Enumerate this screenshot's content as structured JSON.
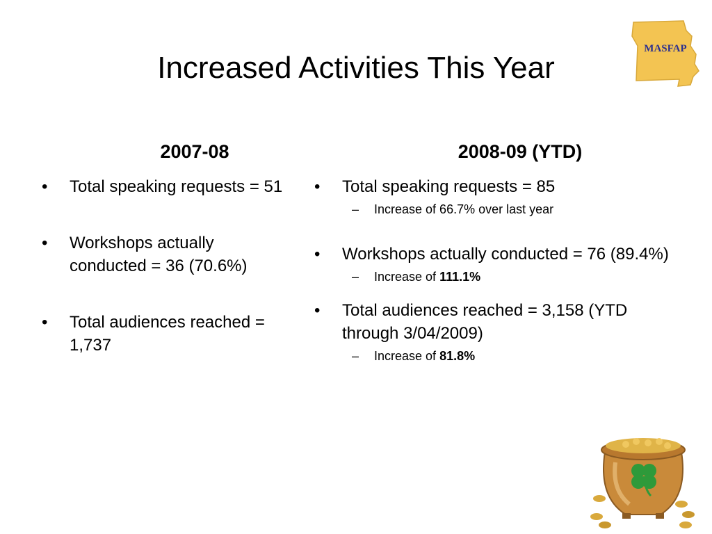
{
  "slide": {
    "title": "Increased Activities This Year",
    "logo_text": "MASFAP"
  },
  "left_column": {
    "heading": "2007-08",
    "items": [
      {
        "text": "Total speaking requests = 51"
      },
      {
        "text": "Workshops actually conducted = 36 (70.6%)"
      },
      {
        "text": "Total audiences reached = 1,737"
      }
    ]
  },
  "right_column": {
    "heading": "2008-09 (YTD)",
    "items": [
      {
        "text": "Total speaking requests = 85",
        "sub_prefix": "Increase of 66.7% over last year",
        "sub_bold": ""
      },
      {
        "text": "Workshops actually conducted = 76 (89.4%)",
        "sub_prefix": "Increase of ",
        "sub_bold": "111.1%"
      },
      {
        "text": "Total audiences reached = 3,158 (YTD through 3/04/2009)",
        "sub_prefix": "Increase of ",
        "sub_bold": "81.8%"
      }
    ]
  },
  "glyphs": {
    "bullet": "•",
    "dash": "–"
  },
  "colors": {
    "logo_state": "#f3c452",
    "logo_text": "#2b2f8f",
    "pot": "#c98a3a",
    "clover": "#2e9a3a",
    "coins": "#d9a93c"
  },
  "icons": {
    "logo": "missouri-state-logo",
    "decoration": "pot-of-gold-clover-image"
  }
}
